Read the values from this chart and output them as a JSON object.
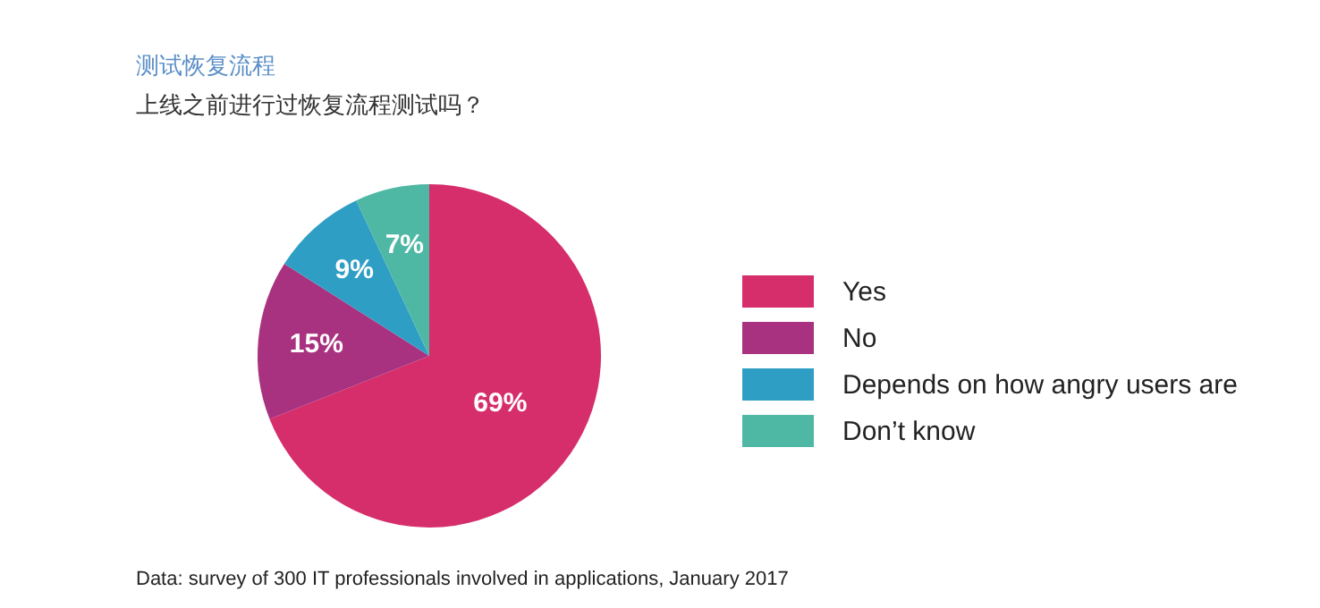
{
  "chart_data": {
    "type": "pie",
    "title": "测试恢复流程",
    "subtitle": "上线之前进行过恢复流程测试吗？",
    "categories": [
      "Yes",
      "No",
      "Depends on how angry users are",
      "Don’t know"
    ],
    "values": [
      69,
      15,
      9,
      7
    ],
    "value_labels": [
      "69%",
      "15%",
      "9%",
      "7%"
    ],
    "colors": [
      "#d62d6b",
      "#a8327f",
      "#2f9ec4",
      "#4fb8a4"
    ],
    "legend": "right",
    "annotations": [
      "Data: survey of 300 IT professionals involved in applications, January 2017"
    ]
  }
}
